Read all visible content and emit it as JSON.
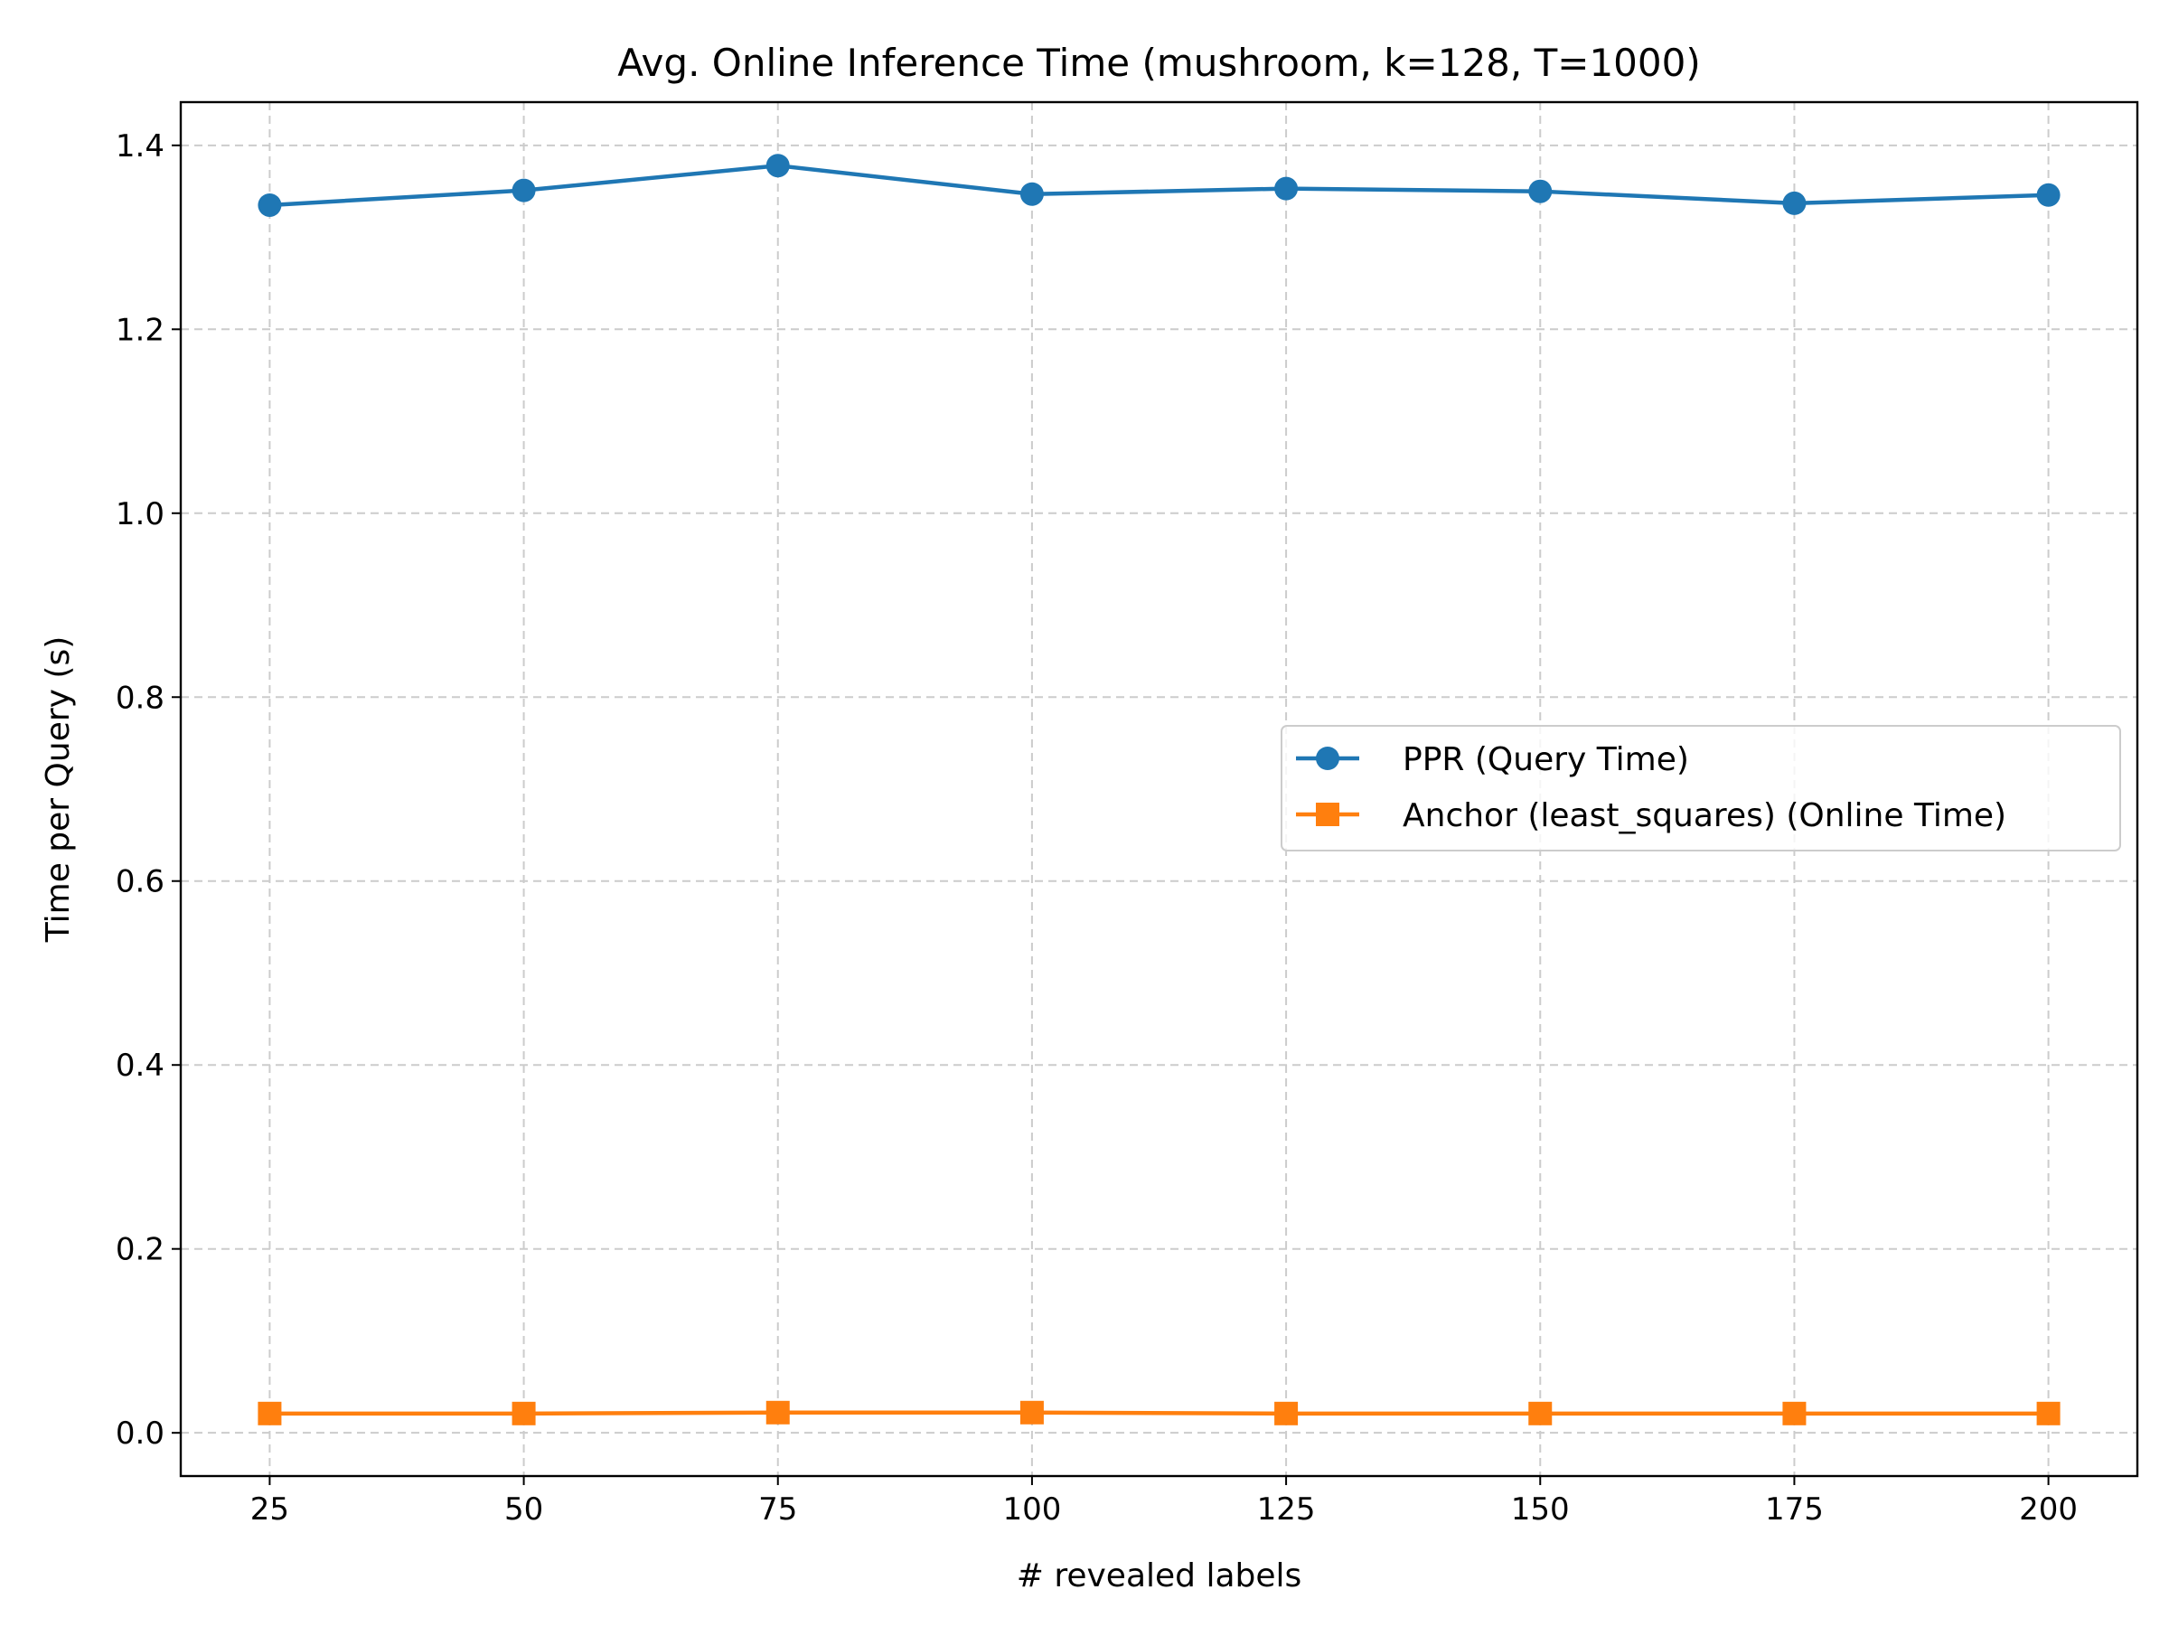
{
  "chart_data": {
    "type": "line",
    "title": "Avg. Online Inference Time (mushroom, k=128, T=1000)",
    "xlabel": "# revealed labels",
    "ylabel": "Time per Query (s)",
    "x": [
      25,
      50,
      75,
      100,
      125,
      150,
      175,
      200
    ],
    "x_ticks": [
      "25",
      "50",
      "75",
      "100",
      "125",
      "150",
      "175",
      "200"
    ],
    "y_ticks": [
      "0.0",
      "0.2",
      "0.4",
      "0.6",
      "0.8",
      "1.0",
      "1.2",
      "1.4"
    ],
    "xlim": [
      16.25,
      208.75
    ],
    "ylim": [
      -0.047,
      1.447
    ],
    "grid": true,
    "legend_position": "center-right",
    "series": [
      {
        "name": "PPR (Query Time)",
        "marker": "circle",
        "color": "#1f77b4",
        "values": [
          1.335,
          1.351,
          1.378,
          1.347,
          1.353,
          1.35,
          1.337,
          1.346
        ]
      },
      {
        "name": "Anchor (least_squares) (Online Time)",
        "marker": "square",
        "color": "#ff7f0e",
        "values": [
          0.021,
          0.021,
          0.022,
          0.022,
          0.021,
          0.021,
          0.021,
          0.021
        ]
      }
    ]
  }
}
